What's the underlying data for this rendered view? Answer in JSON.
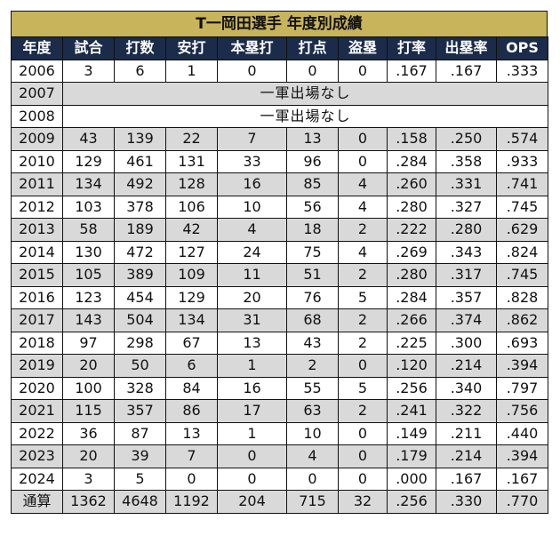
{
  "colors": {
    "title_bg": "#c8b45a",
    "header_bg": "#1b2b4a",
    "alt_row_bg": "#d9d9d9"
  },
  "title": "T一岡田選手 年度別成績",
  "headers": [
    "年度",
    "試合",
    "打数",
    "安打",
    "本塁打",
    "打点",
    "盗塁",
    "打率",
    "出塁率",
    "OPS"
  ],
  "rows": [
    {
      "year": "2006",
      "values": [
        "3",
        "6",
        "1",
        "0",
        "0",
        "0",
        ".167",
        ".167",
        ".333"
      ]
    },
    {
      "year": "2007",
      "note": "一軍出場なし"
    },
    {
      "year": "2008",
      "note": "一軍出場なし"
    },
    {
      "year": "2009",
      "values": [
        "43",
        "139",
        "22",
        "7",
        "13",
        "0",
        ".158",
        ".250",
        ".574"
      ]
    },
    {
      "year": "2010",
      "values": [
        "129",
        "461",
        "131",
        "33",
        "96",
        "0",
        ".284",
        ".358",
        ".933"
      ]
    },
    {
      "year": "2011",
      "values": [
        "134",
        "492",
        "128",
        "16",
        "85",
        "4",
        ".260",
        ".331",
        ".741"
      ]
    },
    {
      "year": "2012",
      "values": [
        "103",
        "378",
        "106",
        "10",
        "56",
        "4",
        ".280",
        ".327",
        ".745"
      ]
    },
    {
      "year": "2013",
      "values": [
        "58",
        "189",
        "42",
        "4",
        "18",
        "2",
        ".222",
        ".280",
        ".629"
      ]
    },
    {
      "year": "2014",
      "values": [
        "130",
        "472",
        "127",
        "24",
        "75",
        "4",
        ".269",
        ".343",
        ".824"
      ]
    },
    {
      "year": "2015",
      "values": [
        "105",
        "389",
        "109",
        "11",
        "51",
        "2",
        ".280",
        ".317",
        ".745"
      ]
    },
    {
      "year": "2016",
      "values": [
        "123",
        "454",
        "129",
        "20",
        "76",
        "5",
        ".284",
        ".357",
        ".828"
      ]
    },
    {
      "year": "2017",
      "values": [
        "143",
        "504",
        "134",
        "31",
        "68",
        "2",
        ".266",
        ".374",
        ".862"
      ]
    },
    {
      "year": "2018",
      "values": [
        "97",
        "298",
        "67",
        "13",
        "43",
        "2",
        ".225",
        ".300",
        ".693"
      ]
    },
    {
      "year": "2019",
      "values": [
        "20",
        "50",
        "6",
        "1",
        "2",
        "0",
        ".120",
        ".214",
        ".394"
      ]
    },
    {
      "year": "2020",
      "values": [
        "100",
        "328",
        "84",
        "16",
        "55",
        "5",
        ".256",
        ".340",
        ".797"
      ]
    },
    {
      "year": "2021",
      "values": [
        "115",
        "357",
        "86",
        "17",
        "63",
        "2",
        ".241",
        ".322",
        ".756"
      ]
    },
    {
      "year": "2022",
      "values": [
        "36",
        "87",
        "13",
        "1",
        "10",
        "0",
        ".149",
        ".211",
        ".440"
      ]
    },
    {
      "year": "2023",
      "values": [
        "20",
        "39",
        "7",
        "0",
        "4",
        "0",
        ".179",
        ".214",
        ".394"
      ]
    },
    {
      "year": "2024",
      "values": [
        "3",
        "5",
        "0",
        "0",
        "0",
        "0",
        ".000",
        ".167",
        ".167"
      ]
    }
  ],
  "totals": {
    "label": "通算",
    "values": [
      "1362",
      "4648",
      "1192",
      "204",
      "715",
      "32",
      ".256",
      ".330",
      ".770"
    ]
  }
}
